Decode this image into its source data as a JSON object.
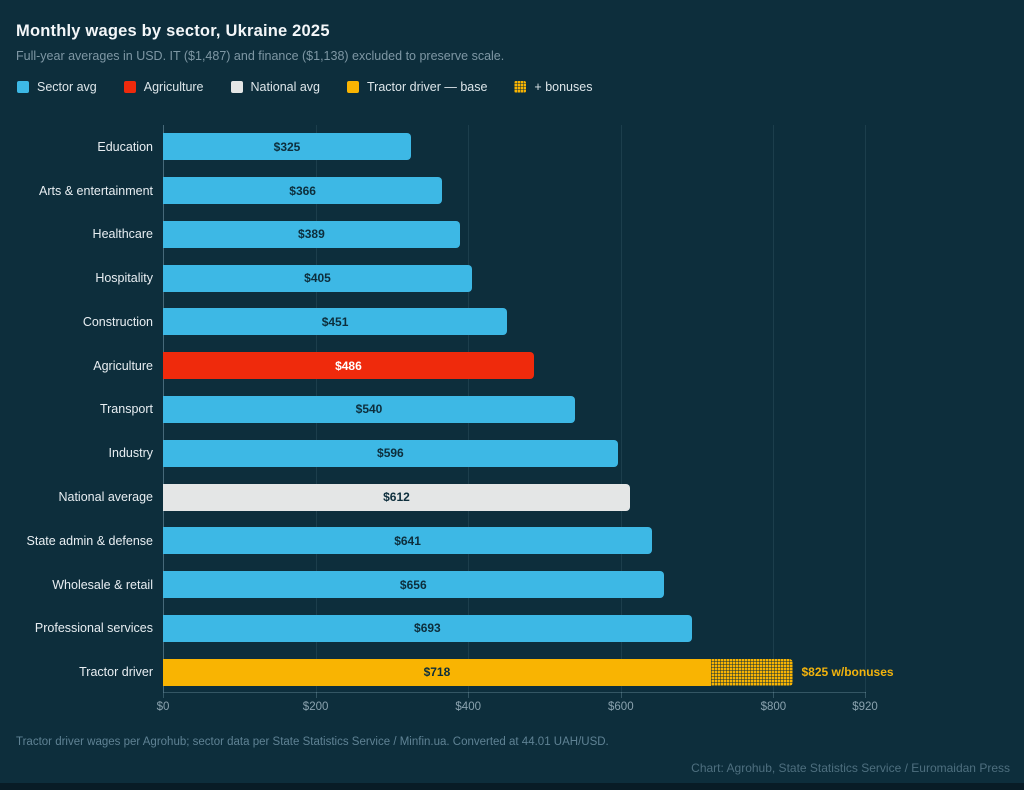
{
  "header": {
    "title": "Monthly wages by sector, Ukraine 2025",
    "subtitle": "Full-year averages in USD. IT ($1,487) and finance ($1,138) excluded to preserve scale."
  },
  "colors": {
    "background": "#0d2e3c",
    "sector": "#3db8e5",
    "agriculture": "#ef2a0c",
    "national": "#e4e6e6",
    "tractor": "#f9b402",
    "bar_text_dark": "#0d2e3c",
    "bar_text_light": "#ffffff",
    "bonus_label": "#f2b30d"
  },
  "legend": [
    {
      "label": "Sector avg",
      "kind": "sector",
      "icon": "swatch"
    },
    {
      "label": "Agriculture",
      "kind": "agriculture",
      "icon": "swatch"
    },
    {
      "label": "National avg",
      "kind": "national",
      "icon": "swatch"
    },
    {
      "label": "Tractor driver — base",
      "kind": "tractor",
      "icon": "swatch"
    },
    {
      "label": "+ bonuses",
      "kind": "bonus-hatch",
      "icon": "hatched-swatch"
    }
  ],
  "chart_data": {
    "type": "bar",
    "orientation": "horizontal",
    "xlim": [
      0,
      920
    ],
    "grid": true,
    "x_ticks": [
      {
        "value": 0,
        "label": "$0"
      },
      {
        "value": 200,
        "label": "$200"
      },
      {
        "value": 400,
        "label": "$400"
      },
      {
        "value": 600,
        "label": "$600"
      },
      {
        "value": 800,
        "label": "$800"
      },
      {
        "value": 920,
        "label": "$920"
      }
    ],
    "categories": [
      "Education",
      "Arts & entertainment",
      "Healthcare",
      "Hospitality",
      "Construction",
      "Agriculture",
      "Transport",
      "Industry",
      "National average",
      "State admin & defense",
      "Wholesale & retail",
      "Professional services",
      "Tractor driver"
    ],
    "values": [
      325,
      366,
      389,
      405,
      451,
      486,
      540,
      596,
      612,
      641,
      656,
      693,
      718
    ],
    "bars": [
      {
        "category": "Education",
        "value": 325,
        "display": "$325",
        "kind": "sector"
      },
      {
        "category": "Arts & entertainment",
        "value": 366,
        "display": "$366",
        "kind": "sector"
      },
      {
        "category": "Healthcare",
        "value": 389,
        "display": "$389",
        "kind": "sector"
      },
      {
        "category": "Hospitality",
        "value": 405,
        "display": "$405",
        "kind": "sector"
      },
      {
        "category": "Construction",
        "value": 451,
        "display": "$451",
        "kind": "sector"
      },
      {
        "category": "Agriculture",
        "value": 486,
        "display": "$486",
        "kind": "agriculture"
      },
      {
        "category": "Transport",
        "value": 540,
        "display": "$540",
        "kind": "sector"
      },
      {
        "category": "Industry",
        "value": 596,
        "display": "$596",
        "kind": "sector"
      },
      {
        "category": "National average",
        "value": 612,
        "display": "$612",
        "kind": "national"
      },
      {
        "category": "State admin & defense",
        "value": 641,
        "display": "$641",
        "kind": "sector"
      },
      {
        "category": "Wholesale & retail",
        "value": 656,
        "display": "$656",
        "kind": "sector"
      },
      {
        "category": "Professional services",
        "value": 693,
        "display": "$693",
        "kind": "sector"
      },
      {
        "category": "Tractor driver",
        "value": 718,
        "display": "$718",
        "kind": "tractor",
        "bonus": {
          "value": 825,
          "label": "$825 w/bonuses"
        }
      }
    ]
  },
  "footer": {
    "footnote": "Tractor driver wages per Agrohub; sector data per State Statistics Service / Minfin.ua. Converted at 44.01 UAH/USD.",
    "credit": "Chart: Agrohub, State Statistics Service / Euromaidan Press"
  }
}
